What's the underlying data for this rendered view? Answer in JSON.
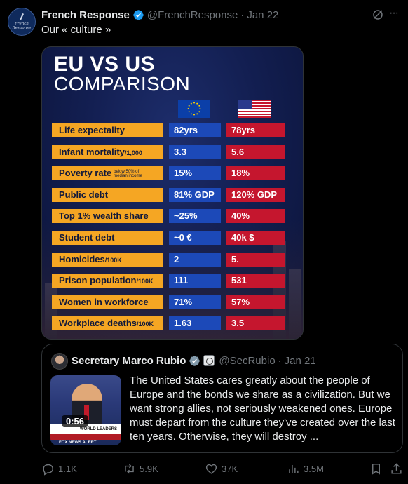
{
  "tweet": {
    "author_name": "French Response",
    "handle": "@FrenchResponse",
    "date": "Jan 22",
    "text": "Our « culture »",
    "avatar_text": "French Response"
  },
  "infographic": {
    "title_line1": "EU VS US",
    "title_line2": "COMPARISON",
    "rows": [
      {
        "label": "Life expectality",
        "unit": "",
        "note": "",
        "eu": "82yrs",
        "us": "78yrs"
      },
      {
        "label": "Infant mortality",
        "unit": "/1,000",
        "note": "",
        "eu": "3.3",
        "us": "5.6"
      },
      {
        "label": "Poverty rate",
        "unit": "",
        "note": "below 50% of median income",
        "eu": "15%",
        "us": "18%"
      },
      {
        "label": "Public debt",
        "unit": "",
        "note": "",
        "eu": "81% GDP",
        "us": "120% GDP"
      },
      {
        "label": "Top 1% wealth share",
        "unit": "",
        "note": "",
        "eu": "~25%",
        "us": "40%"
      },
      {
        "label": "Student debt",
        "unit": "",
        "note": "",
        "eu": "~0 €",
        "us": "40k $"
      },
      {
        "label": "Homicides",
        "unit": "/100K",
        "note": "",
        "eu": "2",
        "us": "5."
      },
      {
        "label": "Prison population",
        "unit": "/100K",
        "note": "",
        "eu": "111",
        "us": "531"
      },
      {
        "label": "Women in workforce",
        "unit": "",
        "note": "",
        "eu": "71%",
        "us": "57%"
      },
      {
        "label": "Workplace deaths",
        "unit": "/100K",
        "note": "",
        "eu": "1.63",
        "us": "3.5"
      }
    ],
    "colors": {
      "label_bg": "#f5a623",
      "eu_bg": "#1c49b8",
      "us_bg": "#c5162e"
    }
  },
  "quote": {
    "author_name": "Secretary Marco Rubio",
    "handle": "@SecRubio",
    "date": "Jan 21",
    "video_duration": "0:56",
    "video_banner": "WORLD LEADERS",
    "video_ticker": "FOX NEWS ALERT",
    "text": "The United States cares greatly about the people of Europe and the bonds we share as a civilization. But we want strong allies, not seriously weakened ones. Europe must depart from the culture they've created over the last ten years. Otherwise, they will destroy ..."
  },
  "actions": {
    "replies": "1.1K",
    "reposts": "5.9K",
    "likes": "37K",
    "views": "3.5M"
  }
}
